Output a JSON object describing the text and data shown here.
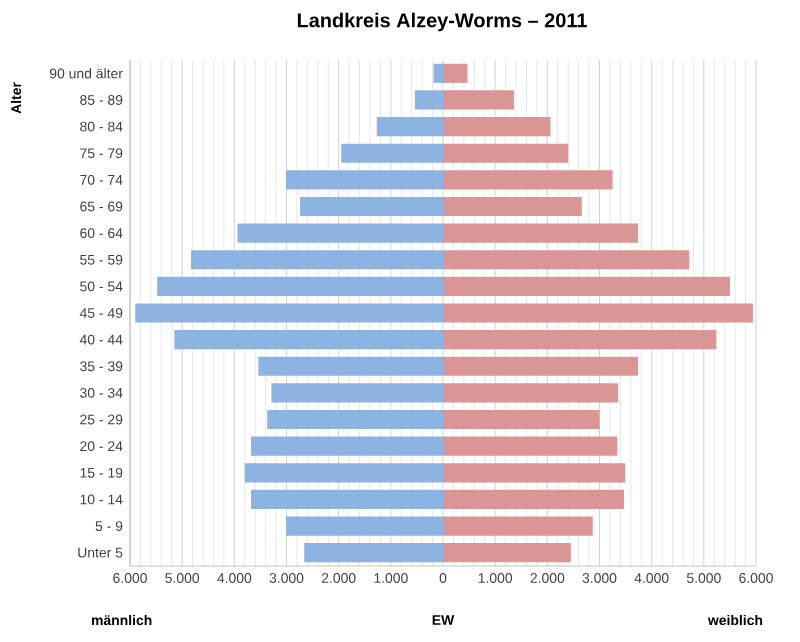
{
  "chart_data": {
    "type": "bar",
    "orientation": "horizontal",
    "stacked": true,
    "title": "Landkreis Alzey-Worms – 2011",
    "xlabel": "EW",
    "ylabel": "Alter",
    "categories": [
      "90 und älter",
      "85 - 89",
      "80 - 84",
      "75 - 79",
      "70 - 74",
      "65 - 69",
      "60 - 64",
      "55 - 59",
      "50 - 54",
      "45 - 49",
      "40 - 44",
      "35 - 39",
      "30 - 34",
      "25 - 29",
      "20 - 24",
      "15 - 19",
      "10 - 14",
      "5 - 9",
      "Unter 5"
    ],
    "series": [
      {
        "color": "#8db3e2",
        "values": [
          -180,
          -540,
          -1270,
          -1950,
          -3010,
          -2740,
          -3940,
          -4830,
          -5480,
          -5900,
          -5150,
          -3540,
          -3290,
          -3370,
          -3680,
          -3800,
          -3680,
          -3010,
          -2660
        ]
      },
      {
        "color": "#d99694",
        "values": [
          470,
          1360,
          2060,
          2400,
          3250,
          2660,
          3740,
          4720,
          5500,
          5940,
          5240,
          3740,
          3360,
          3000,
          3340,
          3490,
          3470,
          2870,
          2450
        ]
      }
    ],
    "xlim": [
      -6000,
      6000
    ],
    "xticks": [
      {
        "value": -6000,
        "label": "6.000"
      },
      {
        "value": -5000,
        "label": "5.000"
      },
      {
        "value": -4000,
        "label": "4.000"
      },
      {
        "value": -3000,
        "label": "3.000"
      },
      {
        "value": -2000,
        "label": "2.000"
      },
      {
        "value": -1000,
        "label": "1.000"
      },
      {
        "value": 0,
        "label": "0"
      },
      {
        "value": 1000,
        "label": "1.000"
      },
      {
        "value": 2000,
        "label": "2.000"
      },
      {
        "value": 3000,
        "label": "3.000"
      },
      {
        "value": 4000,
        "label": "4.000"
      },
      {
        "value": 5000,
        "label": "5.000"
      },
      {
        "value": 6000,
        "label": "6.000"
      }
    ],
    "grid": "x",
    "annotations": [
      "männlich",
      "weiblich"
    ]
  }
}
